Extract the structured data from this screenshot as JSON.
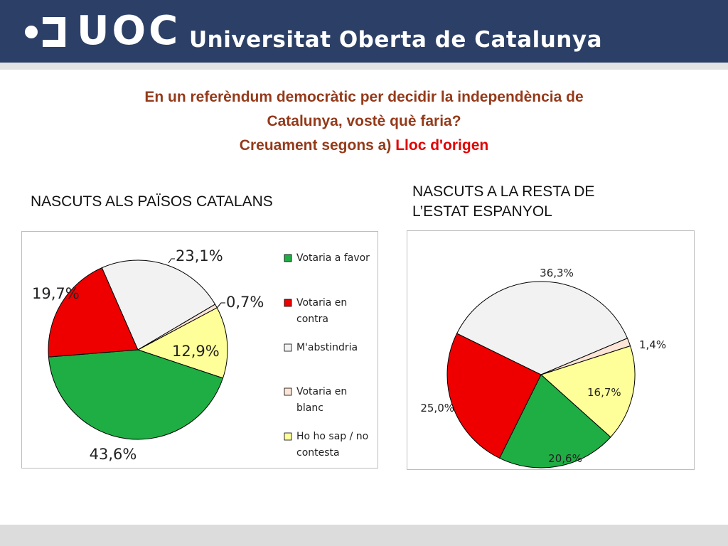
{
  "header": {
    "logo_text": "UOC",
    "university_name": "Universitat Oberta de Catalunya",
    "background_color": "#2c3f66"
  },
  "slide": {
    "title_line1": "En un referèndum democràtic per decidir la independència de",
    "title_line2": "Catalunya, vostè què faria?",
    "title_line3_prefix": "Creuament segons  a) ",
    "title_line3_highlight": "Lloc d'origen"
  },
  "chart_data": [
    {
      "type": "pie",
      "title": "NASCUTS ALS PAÏSOS CATALANS",
      "categories": [
        "Votaria a favor",
        "Votaria en contra",
        "M'abstindria",
        "Votaria en blanc",
        "Ho ho sap / no contesta"
      ],
      "values": [
        43.6,
        19.7,
        23.1,
        0.7,
        12.9
      ],
      "labels": [
        "43,6%",
        "19,7%",
        "23,1%",
        "0,7%",
        "12,9%"
      ],
      "colors": [
        "#1fae44",
        "#ee0000",
        "#f2f2f2",
        "#fce4d6",
        "#ffff99"
      ],
      "legend": {
        "position": "right",
        "items": [
          {
            "line1": "Votaria a favor",
            "line2": ""
          },
          {
            "line1": "Votaria en",
            "line2": "contra"
          },
          {
            "line1": "M'abstindria",
            "line2": ""
          },
          {
            "line1": "Votaria en",
            "line2": "blanc"
          },
          {
            "line1": "Ho ho sap / no",
            "line2": "contesta"
          }
        ]
      }
    },
    {
      "type": "pie",
      "title_line1": "NASCUTS A LA RESTA DE",
      "title_line2": "L’ESTAT ESPANYOL",
      "categories": [
        "Votaria a favor",
        "Votaria en contra",
        "M'abstindria",
        "Votaria en blanc",
        "Ho ho sap / no contesta"
      ],
      "values": [
        20.6,
        25.0,
        36.3,
        1.4,
        16.7
      ],
      "labels": [
        "20,6%",
        "25,0%",
        "36,3%",
        "1,4%",
        "16,7%"
      ],
      "colors": [
        "#1fae44",
        "#ee0000",
        "#f2f2f2",
        "#fce4d6",
        "#ffff99"
      ]
    }
  ]
}
